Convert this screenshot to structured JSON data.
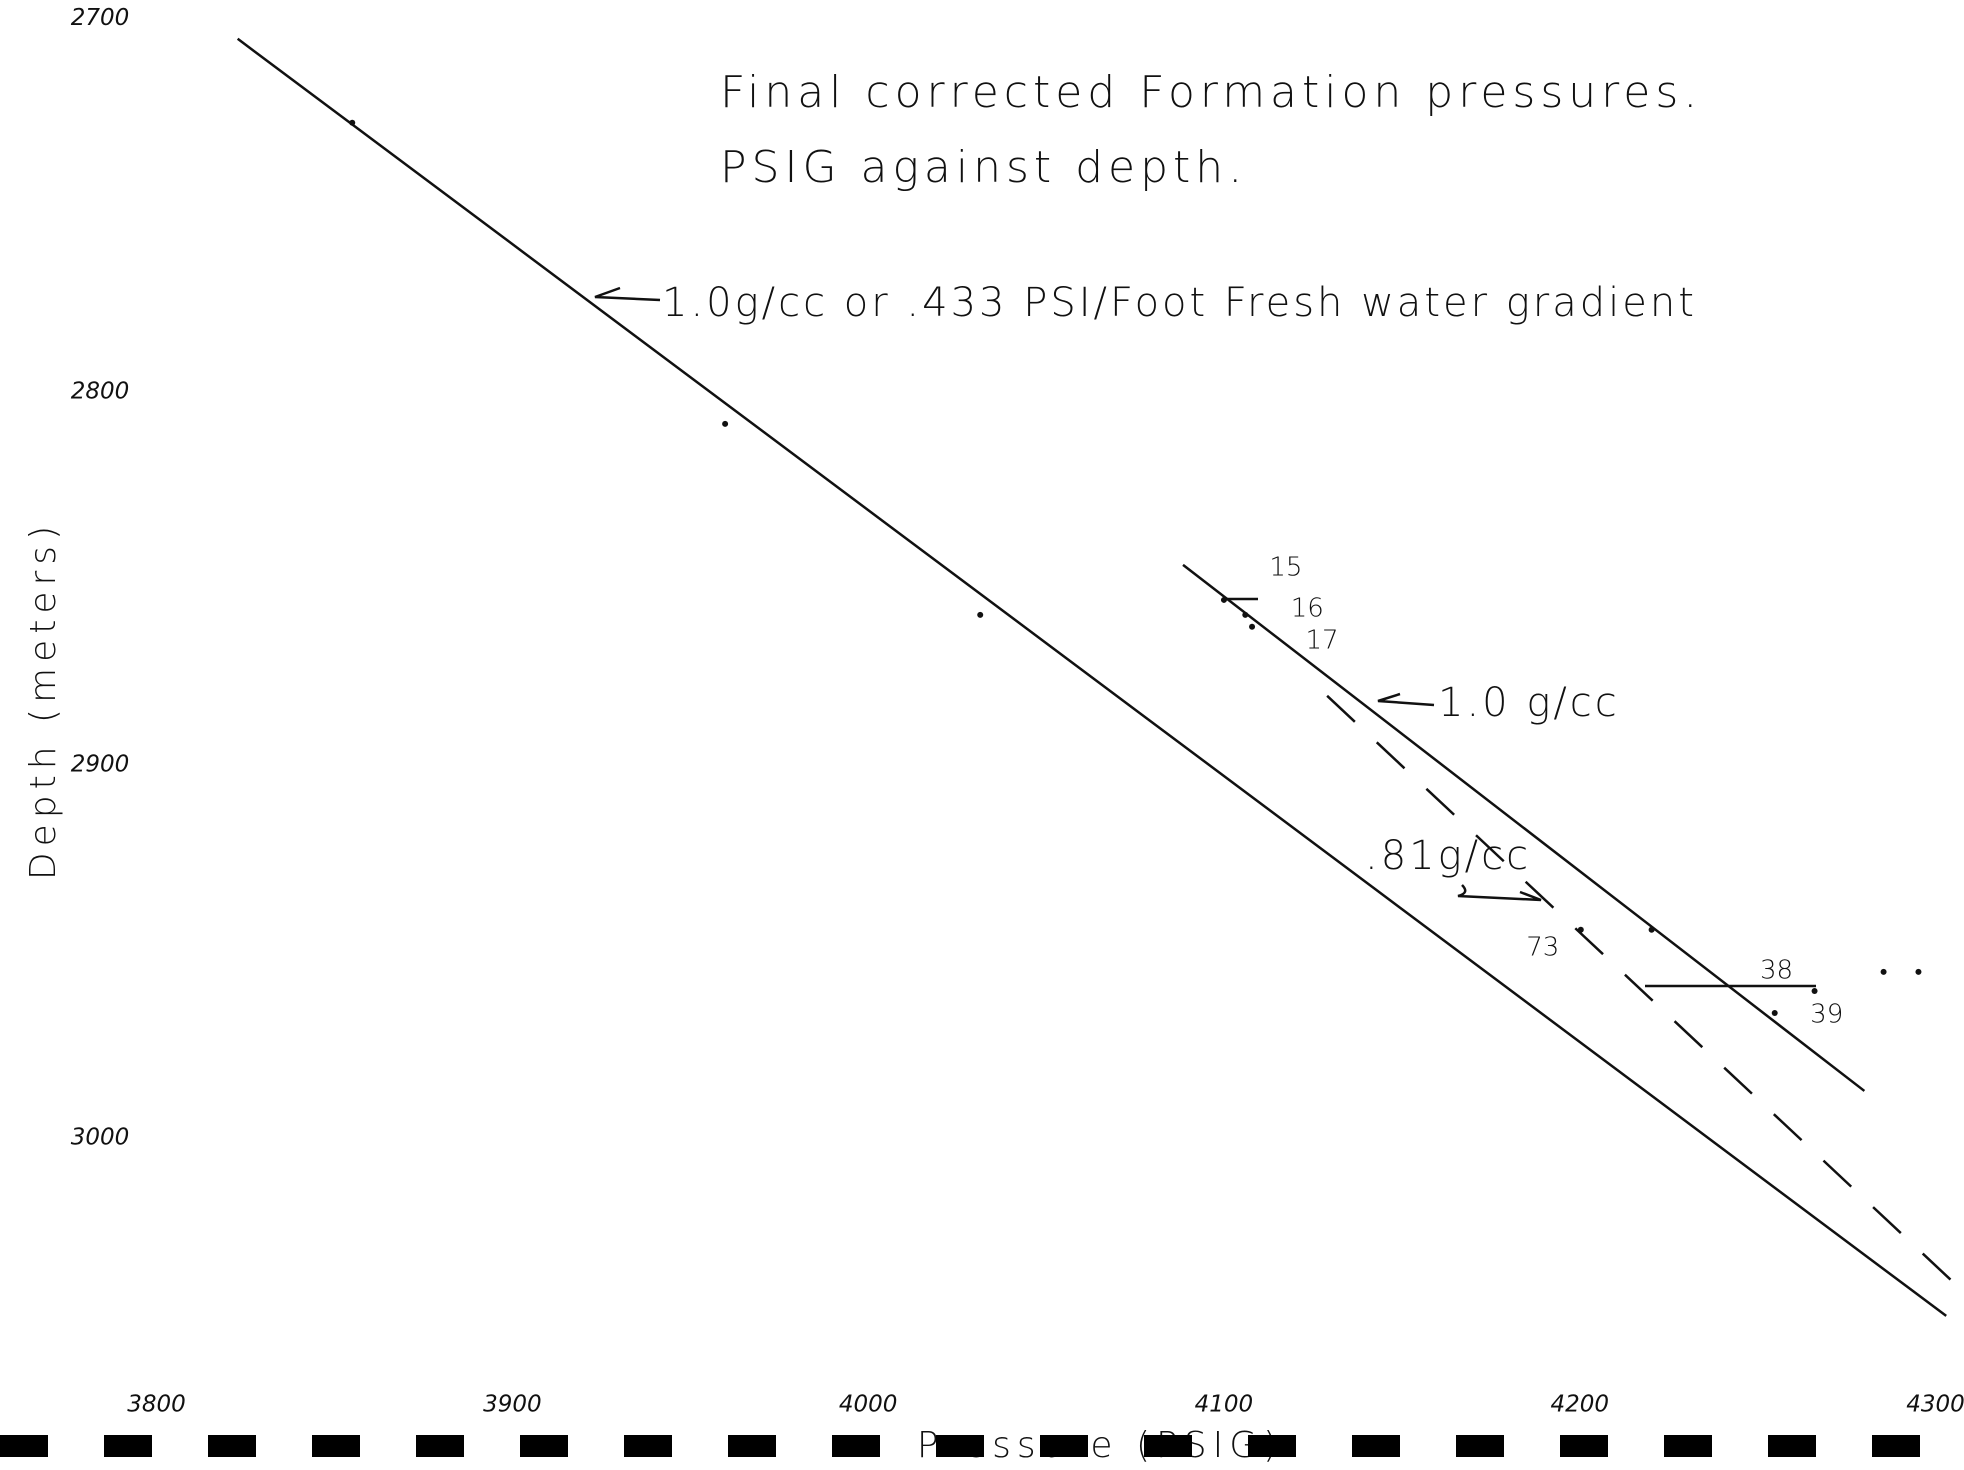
{
  "chart_data": {
    "type": "line",
    "title": "Final corrected Formation pressures.",
    "subtitle": "PSIG against depth.",
    "x_label": "Pressure (PSIG)",
    "y_label": "Depth (meters)",
    "xlim": [
      3756,
      4308
    ],
    "ylim": [
      2695,
      3089
    ],
    "xticks": [
      3800,
      3900,
      4000,
      4100,
      4200,
      4300
    ],
    "yticks": [
      2700,
      2800,
      2900,
      3000
    ],
    "color": "#111111",
    "annotations": [
      "1.0g/cc or .433 PSI/Foot Fresh water gradient",
      "1.0 g/cc",
      ".81g/cc"
    ],
    "series": [
      {
        "style": "solid",
        "x": [
          3822.8,
          4303
        ],
        "y": [
          2705.4,
          3047.7
        ]
      },
      {
        "style": "solid",
        "x": [
          4088.5,
          4280
        ],
        "y": [
          2846.4,
          2987.4
        ]
      },
      {
        "style": "dashed",
        "x": [
          4129,
          4307.6
        ],
        "y": [
          2881.5,
          3041
        ]
      }
    ],
    "points": {
      "x": [
        3855,
        3959.8,
        4031.5,
        4100,
        4106,
        4107.9,
        4200.3,
        4220.2,
        4266,
        4254.8,
        4285.4,
        4295.2
      ],
      "y": [
        2727.9,
        2808.6,
        2859.8,
        2855.8,
        2859.8,
        2863,
        2944.2,
        2944.2,
        2960.6,
        2966.5,
        2955.5,
        2955.5
      ],
      "labels": [
        null,
        null,
        null,
        "15",
        "16",
        "17",
        "73",
        null,
        "38",
        "39",
        null,
        null
      ]
    }
  }
}
